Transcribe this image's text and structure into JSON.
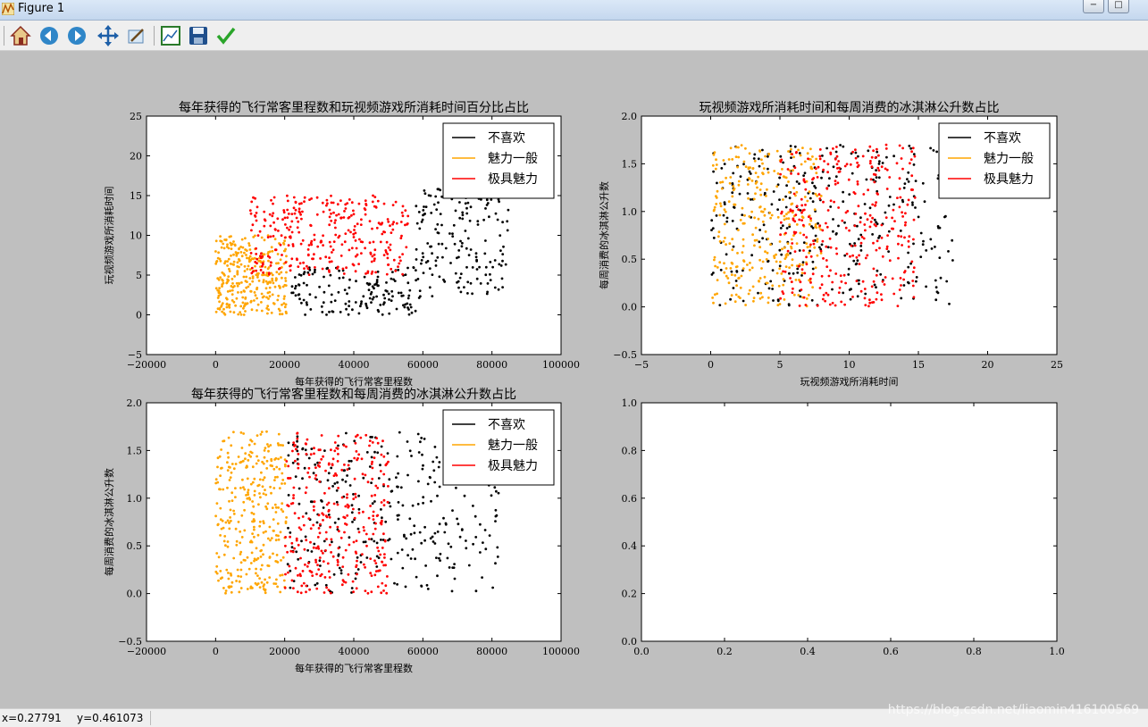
{
  "window": {
    "title": "Figure 1"
  },
  "toolbar": {
    "tools": [
      {
        "name": "home-icon"
      },
      {
        "name": "back-icon"
      },
      {
        "name": "forward-icon"
      },
      {
        "name": "pan-icon"
      },
      {
        "name": "zoom-icon"
      },
      {
        "name": "configure-subplots-icon"
      },
      {
        "name": "save-icon"
      },
      {
        "name": "edit-check-icon"
      }
    ]
  },
  "status": {
    "x": "x=0.27791",
    "y": "y=0.461073"
  },
  "watermark": "https://blog.csdn.net/liaomin416100569",
  "colors": {
    "didntLike": "#000000",
    "smallDoses": "#ffa500",
    "largeDoses": "#ff0000"
  },
  "chart_data": [
    {
      "type": "scatter",
      "title": "每年获得的飞行常客里程数和玩视频游戏所消耗时间百分比占比",
      "xlabel": "每年获得的飞行常客里程数",
      "ylabel": "玩视频游戏所消耗时间",
      "xlim": [
        -20000,
        100000
      ],
      "ylim": [
        -5,
        25
      ],
      "xticks": [
        "−20000",
        "0",
        "20000",
        "40000",
        "60000",
        "80000",
        "100000"
      ],
      "yticks": [
        "−5",
        "0",
        "5",
        "10",
        "15",
        "20",
        "25"
      ],
      "legend_position": "top-right",
      "series": [
        {
          "name": "不喜欢",
          "color": "#000000",
          "clusters": [
            {
              "x": [
                22000,
                58000
              ],
              "y": [
                0,
                6
              ],
              "n": 150
            },
            {
              "x": [
                58000,
                85000
              ],
              "y": [
                2,
                16
              ],
              "n": 170
            }
          ]
        },
        {
          "name": "魅力一般",
          "color": "#ffa500",
          "clusters": [
            {
              "x": [
                0,
                20500
              ],
              "y": [
                0,
                10
              ],
              "n": 320
            }
          ]
        },
        {
          "name": "极具魅力",
          "color": "#ff0000",
          "clusters": [
            {
              "x": [
                10000,
                56000
              ],
              "y": [
                5,
                15
              ],
              "n": 320
            }
          ]
        }
      ]
    },
    {
      "type": "scatter",
      "title": "玩视频游戏所消耗时间和每周消费的冰淇淋公升数占比",
      "xlabel": "玩视频游戏所消耗时间",
      "ylabel": "每周消费的冰淇淋公升数",
      "xlim": [
        -5,
        25
      ],
      "ylim": [
        -0.5,
        2.0
      ],
      "xticks": [
        "−5",
        "0",
        "5",
        "10",
        "15",
        "20",
        "25"
      ],
      "yticks": [
        "−0.5",
        "0.0",
        "0.5",
        "1.0",
        "1.5",
        "2.0"
      ],
      "legend_position": "top-right",
      "series": [
        {
          "name": "不喜欢",
          "color": "#000000",
          "clusters": [
            {
              "x": [
                0,
                17.5
              ],
              "y": [
                0,
                1.7
              ],
              "n": 320
            }
          ]
        },
        {
          "name": "魅力一般",
          "color": "#ffa500",
          "clusters": [
            {
              "x": [
                0,
                8
              ],
              "y": [
                0,
                1.7
              ],
              "n": 320
            }
          ]
        },
        {
          "name": "极具魅力",
          "color": "#ff0000",
          "clusters": [
            {
              "x": [
                5,
                15
              ],
              "y": [
                0,
                1.7
              ],
              "n": 320
            }
          ]
        }
      ]
    },
    {
      "type": "scatter",
      "title": "每年获得的飞行常客里程数和每周消费的冰淇淋公升数占比",
      "xlabel": "每年获得的飞行常客里程数",
      "ylabel": "每周消费的冰淇淋公升数",
      "xlim": [
        -20000,
        100000
      ],
      "ylim": [
        -0.5,
        2.0
      ],
      "xticks": [
        "−20000",
        "0",
        "20000",
        "40000",
        "60000",
        "80000",
        "100000"
      ],
      "yticks": [
        "−0.5",
        "0.0",
        "0.5",
        "1.0",
        "1.5",
        "2.0"
      ],
      "legend_position": "top-right",
      "series": [
        {
          "name": "不喜欢",
          "color": "#000000",
          "clusters": [
            {
              "x": [
                20000,
                82000
              ],
              "y": [
                0,
                1.7
              ],
              "n": 320
            }
          ]
        },
        {
          "name": "魅力一般",
          "color": "#ffa500",
          "clusters": [
            {
              "x": [
                0,
                20500
              ],
              "y": [
                0,
                1.7
              ],
              "n": 320
            }
          ]
        },
        {
          "name": "极具魅力",
          "color": "#ff0000",
          "clusters": [
            {
              "x": [
                20000,
                50000
              ],
              "y": [
                0,
                1.7
              ],
              "n": 320
            }
          ]
        }
      ]
    },
    {
      "type": "scatter",
      "title": "",
      "xlabel": "",
      "ylabel": "",
      "xlim": [
        0,
        1
      ],
      "ylim": [
        0,
        1
      ],
      "xticks": [
        "0.0",
        "0.2",
        "0.4",
        "0.6",
        "0.8",
        "1.0"
      ],
      "yticks": [
        "0.0",
        "0.2",
        "0.4",
        "0.6",
        "0.8",
        "1.0"
      ],
      "series": []
    }
  ]
}
